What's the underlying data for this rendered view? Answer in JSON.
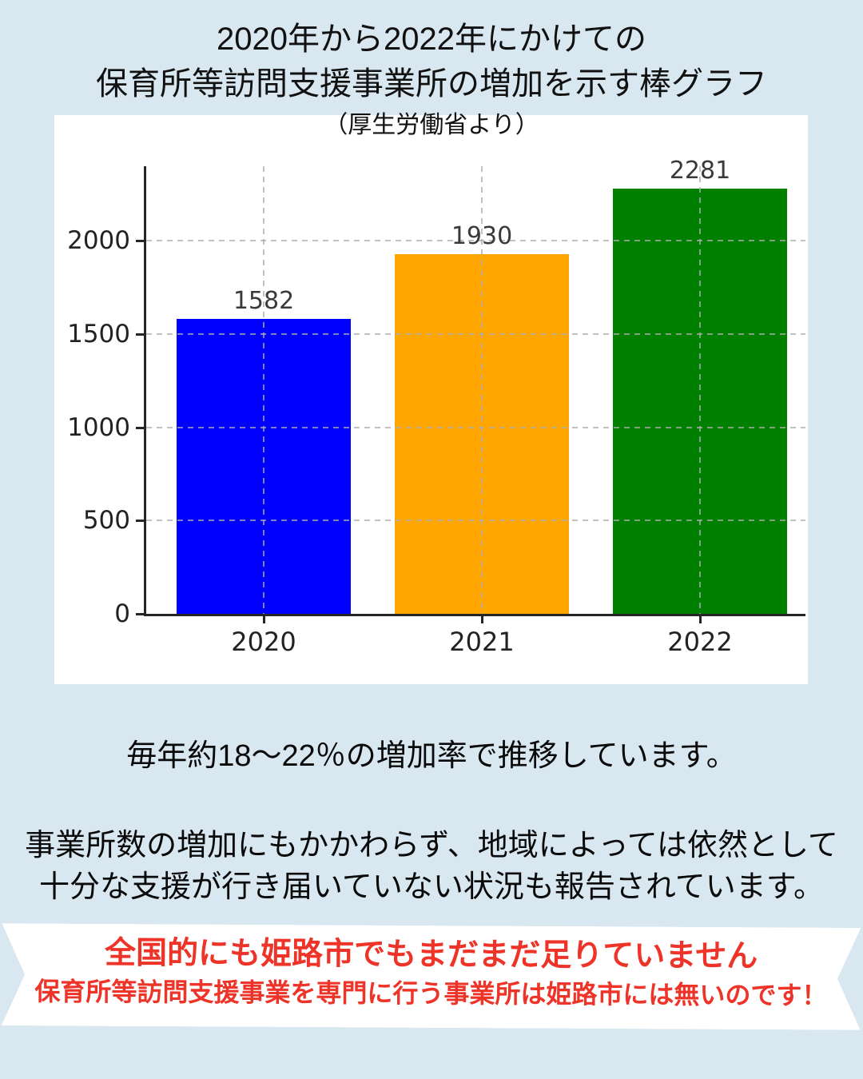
{
  "page": {
    "background_color": "#d8e7f0"
  },
  "header": {
    "title_line1": "2020年から2022年にかけての",
    "title_line2": "保育所等訪問支援事業所の増加を示す棒グラフ",
    "source_note": "（厚生労働省より）"
  },
  "chart_data": {
    "type": "bar",
    "title": "2020年から2022年にかけての保育所等訪問支援事業所の増加を示す棒グラフ（厚生労働省より）",
    "categories": [
      "2020",
      "2021",
      "2022"
    ],
    "values": [
      1582,
      1930,
      2281
    ],
    "value_labels": [
      "1582",
      "1930",
      "2281"
    ],
    "bar_colors": [
      "#0000ff",
      "#ffa500",
      "#008000"
    ],
    "xlabel": "",
    "ylabel": "",
    "yticks": [
      0,
      500,
      1000,
      1500,
      2000
    ],
    "ylim": [
      0,
      2400
    ],
    "grid": "dashed gray, horizontal at yticks and vertical at bar centers, drawn over bars",
    "legend": "none",
    "plot_background": "#ffffff"
  },
  "body": {
    "growth_text": "毎年約18〜22％の増加率で推移しています。",
    "note_line1": "事業所数の増加にもかかわらず、地域によっては依然として",
    "note_line2": "十分な支援が行き届いていない状況も報告されています。"
  },
  "banner": {
    "line1": "全国的にも姫路市でもまだまだ足りていません",
    "line2": "保育所等訪問支援事業を専門に行う事業所は姫路市には無いのです！",
    "text_color": "#ee3328",
    "background_color": "#ffffff"
  }
}
